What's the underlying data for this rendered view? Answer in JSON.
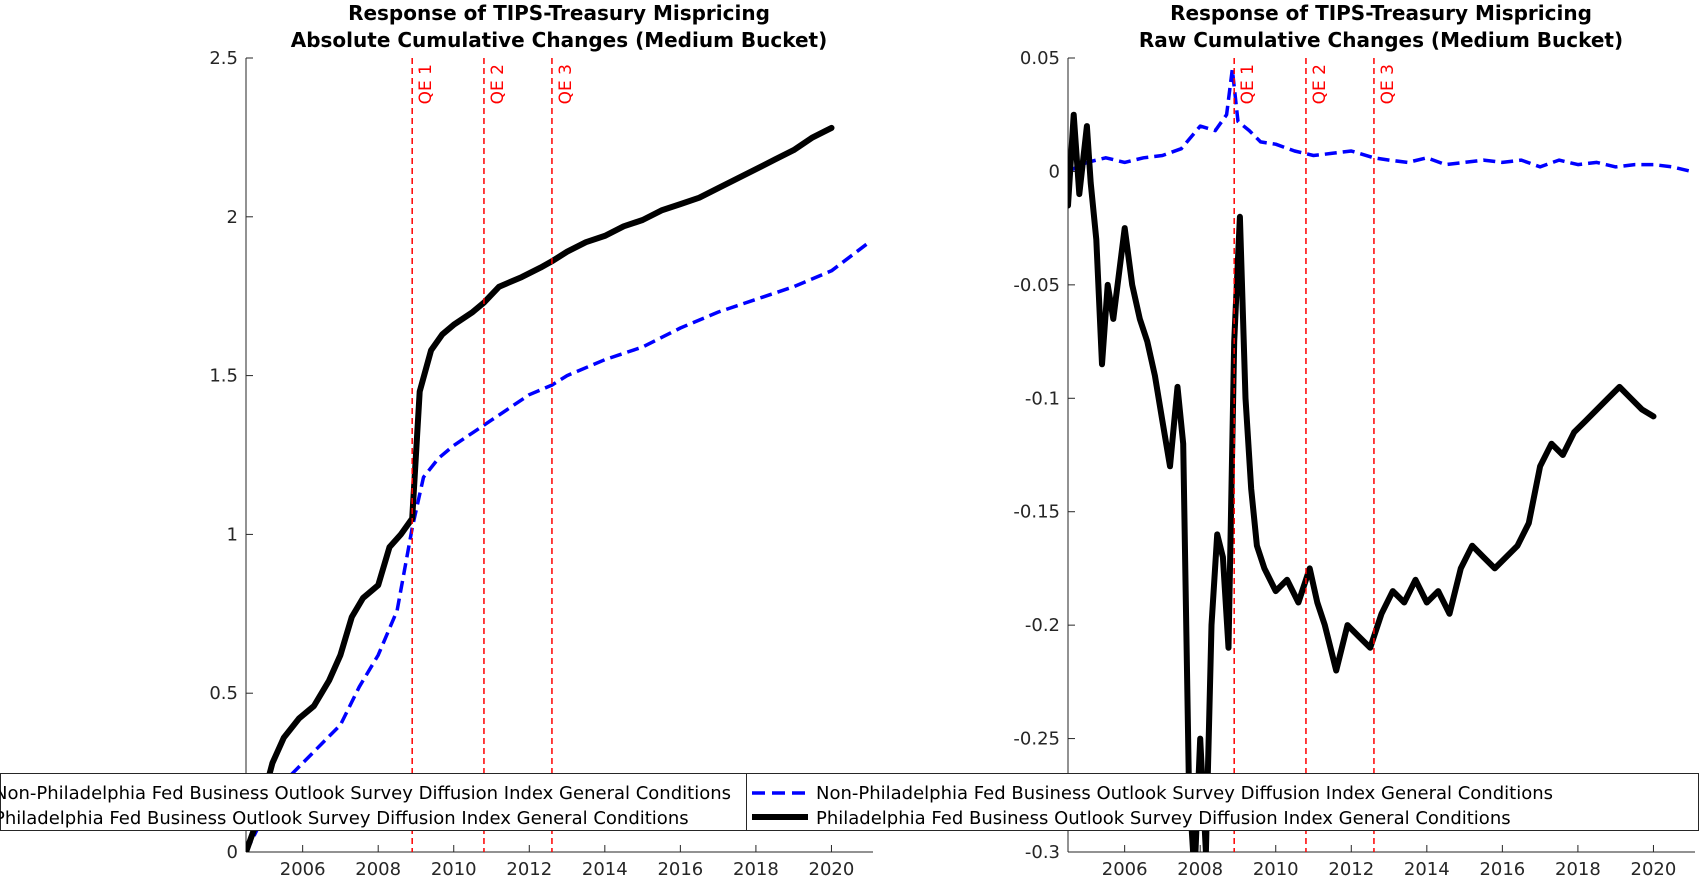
{
  "chart_data": [
    {
      "type": "line",
      "title": "Response of TIPS-Treasury Mispricing",
      "subtitle": "Absolute Cumulative Changes (Medium Bucket)",
      "xlabel": "",
      "ylabel": "",
      "xlim": [
        2004.5,
        2021.1
      ],
      "ylim": [
        0,
        2.5
      ],
      "xticks": [
        2006,
        2008,
        2010,
        2012,
        2014,
        2016,
        2018,
        2020
      ],
      "xtick_labels": [
        "2006",
        "2008",
        "2010",
        "2012",
        "2014",
        "2016",
        "2018",
        "2020"
      ],
      "yticks": [
        0,
        0.5,
        1,
        1.5,
        2,
        2.5
      ],
      "ytick_labels": [
        "0",
        "0.5",
        "1",
        "1.5",
        "2",
        "2.5"
      ],
      "grid": false,
      "legend_position": "bottom",
      "vlines": [
        {
          "x": 2008.9,
          "label": "QE 1"
        },
        {
          "x": 2010.8,
          "label": "QE 2"
        },
        {
          "x": 2012.6,
          "label": "QE 3"
        }
      ],
      "series": [
        {
          "name": "Non-Philadelphia Fed Business Outlook Survey Diffusion Index General Conditions",
          "style": "dashed",
          "color": "#0000ff",
          "x": [
            2004.5,
            2005.0,
            2005.5,
            2006.0,
            2006.5,
            2007.0,
            2007.5,
            2008.0,
            2008.5,
            2008.9,
            2009.2,
            2009.6,
            2010.0,
            2010.5,
            2011.0,
            2011.5,
            2012.0,
            2012.6,
            2013.0,
            2014.0,
            2015.0,
            2016.0,
            2017.0,
            2018.0,
            2019.0,
            2020.0,
            2021.0
          ],
          "y": [
            0.0,
            0.12,
            0.22,
            0.28,
            0.34,
            0.4,
            0.52,
            0.62,
            0.76,
            1.02,
            1.18,
            1.24,
            1.28,
            1.32,
            1.36,
            1.4,
            1.44,
            1.47,
            1.5,
            1.55,
            1.59,
            1.65,
            1.7,
            1.74,
            1.78,
            1.83,
            1.92
          ]
        },
        {
          "name": "Philadelphia Fed Business Outlook Survey Diffusion Index General Conditions",
          "style": "solid",
          "color": "#000000",
          "x": [
            2004.5,
            2004.8,
            2005.2,
            2005.5,
            2005.9,
            2006.3,
            2006.7,
            2007.0,
            2007.3,
            2007.6,
            2008.0,
            2008.3,
            2008.6,
            2008.9,
            2009.1,
            2009.4,
            2009.7,
            2010.0,
            2010.5,
            2010.8,
            2011.2,
            2011.8,
            2012.3,
            2012.6,
            2013.0,
            2013.5,
            2014.0,
            2014.5,
            2015.0,
            2015.5,
            2016.0,
            2016.5,
            2017.0,
            2017.5,
            2018.0,
            2018.5,
            2019.0,
            2019.5,
            2020.0
          ],
          "y": [
            0.0,
            0.1,
            0.28,
            0.36,
            0.42,
            0.46,
            0.54,
            0.62,
            0.74,
            0.8,
            0.84,
            0.96,
            1.0,
            1.05,
            1.45,
            1.58,
            1.63,
            1.66,
            1.7,
            1.73,
            1.78,
            1.81,
            1.84,
            1.86,
            1.89,
            1.92,
            1.94,
            1.97,
            1.99,
            2.02,
            2.04,
            2.06,
            2.09,
            2.12,
            2.15,
            2.18,
            2.21,
            2.25,
            2.28
          ]
        }
      ]
    },
    {
      "type": "line",
      "title": "Response of TIPS-Treasury Mispricing",
      "subtitle": "Raw Cumulative Changes (Medium Bucket)",
      "xlabel": "",
      "ylabel": "",
      "xlim": [
        2004.5,
        2021.1
      ],
      "ylim": [
        -0.3,
        0.05
      ],
      "xticks": [
        2006,
        2008,
        2010,
        2012,
        2014,
        2016,
        2018,
        2020
      ],
      "xtick_labels": [
        "2006",
        "2008",
        "2010",
        "2012",
        "2014",
        "2016",
        "2018",
        "2020"
      ],
      "yticks": [
        -0.3,
        -0.25,
        -0.2,
        -0.15,
        -0.1,
        -0.05,
        0,
        0.05
      ],
      "ytick_labels": [
        "-0.3",
        "-0.25",
        "-0.2",
        "-0.15",
        "-0.1",
        "-0.05",
        "0",
        "0.05"
      ],
      "grid": false,
      "legend_position": "bottom",
      "vlines": [
        {
          "x": 2008.9,
          "label": "QE 1"
        },
        {
          "x": 2010.8,
          "label": "QE 2"
        },
        {
          "x": 2012.6,
          "label": "QE 3"
        }
      ],
      "series": [
        {
          "name": "Non-Philadelphia Fed Business Outlook Survey Diffusion Index General Conditions",
          "style": "dashed",
          "color": "#0000ff",
          "x": [
            2004.5,
            2005.0,
            2005.5,
            2006.0,
            2006.5,
            2007.0,
            2007.5,
            2008.0,
            2008.4,
            2008.7,
            2008.85,
            2009.0,
            2009.3,
            2009.6,
            2010.0,
            2010.5,
            2011.0,
            2011.5,
            2012.0,
            2012.6,
            2013.0,
            2013.5,
            2014.0,
            2014.5,
            2015.0,
            2015.5,
            2016.0,
            2016.5,
            2017.0,
            2017.5,
            2018.0,
            2018.5,
            2019.0,
            2019.5,
            2020.0,
            2020.5,
            2021.0
          ],
          "y": [
            0.0,
            0.004,
            0.006,
            0.004,
            0.006,
            0.007,
            0.01,
            0.02,
            0.018,
            0.025,
            0.045,
            0.022,
            0.018,
            0.013,
            0.012,
            0.009,
            0.007,
            0.008,
            0.009,
            0.006,
            0.005,
            0.004,
            0.006,
            0.003,
            0.004,
            0.005,
            0.004,
            0.005,
            0.002,
            0.005,
            0.003,
            0.004,
            0.002,
            0.003,
            0.003,
            0.002,
            0.0
          ]
        },
        {
          "name": "Philadelphia Fed Business Outlook Survey Diffusion Index General Conditions",
          "style": "solid",
          "color": "#000000",
          "x": [
            2004.5,
            2004.65,
            2004.8,
            2005.0,
            2005.1,
            2005.25,
            2005.4,
            2005.55,
            2005.7,
            2005.85,
            2006.0,
            2006.2,
            2006.4,
            2006.6,
            2006.8,
            2007.0,
            2007.2,
            2007.4,
            2007.55,
            2007.7,
            2007.85,
            2008.0,
            2008.15,
            2008.3,
            2008.45,
            2008.6,
            2008.75,
            2008.9,
            2009.05,
            2009.2,
            2009.35,
            2009.5,
            2009.7,
            2010.0,
            2010.3,
            2010.6,
            2010.9,
            2011.1,
            2011.3,
            2011.6,
            2011.9,
            2012.2,
            2012.5,
            2012.8,
            2013.1,
            2013.4,
            2013.7,
            2014.0,
            2014.3,
            2014.6,
            2014.9,
            2015.2,
            2015.5,
            2015.8,
            2016.1,
            2016.4,
            2016.7,
            2017.0,
            2017.3,
            2017.6,
            2017.9,
            2018.2,
            2018.5,
            2018.8,
            2019.1,
            2019.4,
            2019.7,
            2020.0
          ],
          "y": [
            -0.015,
            0.025,
            -0.01,
            0.02,
            -0.005,
            -0.03,
            -0.085,
            -0.05,
            -0.065,
            -0.045,
            -0.025,
            -0.05,
            -0.065,
            -0.075,
            -0.09,
            -0.11,
            -0.13,
            -0.095,
            -0.12,
            -0.27,
            -0.31,
            -0.25,
            -0.3,
            -0.2,
            -0.16,
            -0.17,
            -0.21,
            -0.075,
            -0.02,
            -0.1,
            -0.14,
            -0.165,
            -0.175,
            -0.185,
            -0.18,
            -0.19,
            -0.175,
            -0.19,
            -0.2,
            -0.22,
            -0.2,
            -0.205,
            -0.21,
            -0.195,
            -0.185,
            -0.19,
            -0.18,
            -0.19,
            -0.185,
            -0.195,
            -0.175,
            -0.165,
            -0.17,
            -0.175,
            -0.17,
            -0.165,
            -0.155,
            -0.13,
            -0.12,
            -0.125,
            -0.115,
            -0.11,
            -0.105,
            -0.1,
            -0.095,
            -0.1,
            -0.105,
            -0.108
          ]
        }
      ]
    }
  ],
  "legend": {
    "entries": [
      "Non-Philadelphia Fed Business Outlook Survey Diffusion Index General Conditions",
      "Philadelphia Fed Business Outlook Survey Diffusion Index General Conditions"
    ]
  }
}
